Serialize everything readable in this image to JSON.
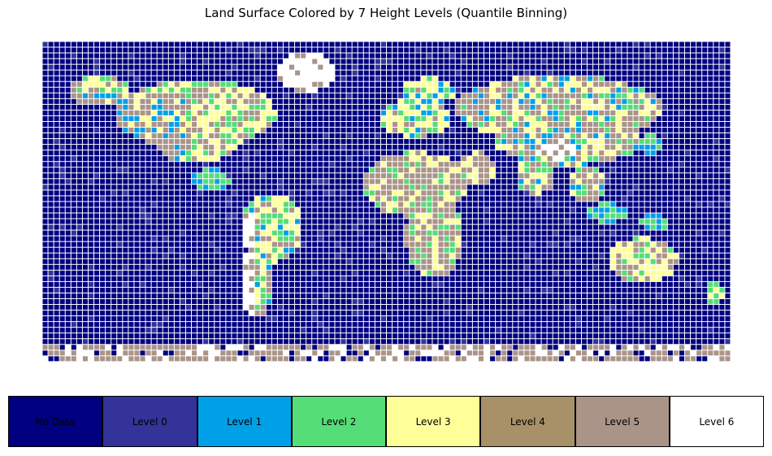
{
  "chart_data": {
    "type": "heatmap",
    "title": "Land Surface Colored by 7 Height Levels (Quantile Binning)",
    "xlabel": "",
    "ylabel": "",
    "grid": true,
    "legend": "bottom",
    "categories": [
      "No Data",
      "Level 0",
      "Level 1",
      "Level 2",
      "Level 3",
      "Level 4",
      "Level 5",
      "Level 6"
    ],
    "colors": [
      "#000080",
      "#333399",
      "#00a0e8",
      "#55dd77",
      "#ffff99",
      "#a89068",
      "#aa9488",
      "#ffffff"
    ],
    "grid_size": {
      "cols": 120,
      "rows": 60
    },
    "water_fraction_estimate": 0.68,
    "grid_line_color": "#ffffff",
    "land_regions": [
      {
        "name": "North America",
        "dominant_level": "Level 5",
        "mixed_levels": [
          "Level 3",
          "Level 2",
          "Level 1"
        ]
      },
      {
        "name": "Greenland",
        "dominant_level": "Level 6",
        "mixed_levels": [
          "Level 5",
          "Level 3"
        ]
      },
      {
        "name": "South America",
        "dominant_level": "Level 3",
        "mixed_levels": [
          "Level 6",
          "Level 2",
          "Level 1",
          "Level 5"
        ]
      },
      {
        "name": "Europe",
        "dominant_level": "Level 3",
        "mixed_levels": [
          "Level 2",
          "Level 0"
        ]
      },
      {
        "name": "Africa",
        "dominant_level": "Level 5",
        "mixed_levels": [
          "Level 3",
          "Level 2"
        ]
      },
      {
        "name": "Asia",
        "dominant_level": "Level 5",
        "mixed_levels": [
          "Level 6",
          "Level 3",
          "Level 2",
          "Level 1"
        ]
      },
      {
        "name": "Australia",
        "dominant_level": "Level 3",
        "mixed_levels": [
          "Level 2",
          "Level 5"
        ]
      },
      {
        "name": "Antarctica",
        "dominant_level": "Level 6",
        "mixed_levels": [
          "Level 5"
        ]
      }
    ]
  },
  "legend": {
    "items": [
      {
        "label": "No Data",
        "color": "#000080"
      },
      {
        "label": "Level 0",
        "color": "#333399"
      },
      {
        "label": "Level 1",
        "color": "#00a0e8"
      },
      {
        "label": "Level 2",
        "color": "#55dd77"
      },
      {
        "label": "Level 3",
        "color": "#ffff99"
      },
      {
        "label": "Level 4",
        "color": "#a89068"
      },
      {
        "label": "Level 5",
        "color": "#aa9488"
      },
      {
        "label": "Level 6",
        "color": "#ffffff"
      }
    ]
  }
}
